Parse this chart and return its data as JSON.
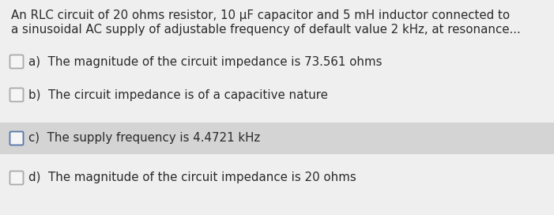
{
  "background_color": "#efefef",
  "highlight_bg": "#d4d4d4",
  "header_text_line1": "An RLC circuit of 20 ohms resistor, 10 μF capacitor and 5 mH inductor connected to",
  "header_text_line2": "a sinusoidal AC supply of adjustable frequency of default value 2 kHz, at resonance...",
  "options": [
    {
      "label": "a)",
      "text": "The magnitude of the circuit impedance is 73.561 ohms",
      "highlighted": false
    },
    {
      "label": "b)",
      "text": "The circuit impedance is of a capacitive nature",
      "highlighted": false
    },
    {
      "label": "c)",
      "text": "The supply frequency is 4.4721 kHz",
      "highlighted": true
    },
    {
      "label": "d)",
      "text": "The magnitude of the circuit impedance is 20 ohms",
      "highlighted": false
    }
  ],
  "header_fontsize": 10.8,
  "option_fontsize": 10.8,
  "text_color": "#2a2a2a",
  "checkbox_color": "#f5f5f5",
  "checkbox_border_normal": "#aaaaaa",
  "checkbox_border_highlighted": "#5577aa",
  "fig_width": 7.01,
  "fig_height": 2.72,
  "dpi": 100
}
